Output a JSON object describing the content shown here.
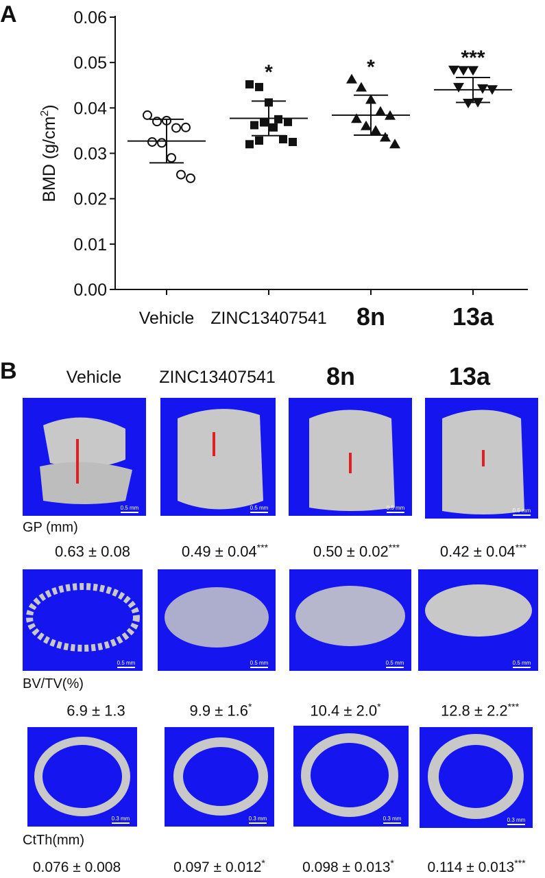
{
  "panel_a": {
    "label": "A",
    "chart_data": {
      "type": "scatter",
      "ylabel": "BMD (g/cm²)",
      "ylabel_main": "BMD (g/cm",
      "ylabel_sup": "2",
      "ylabel_end": ")",
      "ylim": [
        0.0,
        0.06
      ],
      "yticks": [
        "0.00",
        "0.01",
        "0.02",
        "0.03",
        "0.04",
        "0.05",
        "0.06"
      ],
      "categories": [
        "Vehicle",
        "ZINC13407541",
        "8n",
        "13a"
      ],
      "series": [
        {
          "category": "Vehicle",
          "marker": "open-circle",
          "values": [
            0.0384,
            0.037,
            0.0372,
            0.0356,
            0.0357,
            0.0325,
            0.0323,
            0.029,
            0.0253,
            0.0245
          ],
          "mean": 0.0327,
          "sd_low": 0.0279,
          "sd_high": 0.0375,
          "significance": ""
        },
        {
          "category": "ZINC13407541",
          "marker": "filled-square",
          "values": [
            0.0452,
            0.0446,
            0.0412,
            0.0375,
            0.0369,
            0.0362,
            0.0368,
            0.0357,
            0.0331,
            0.0325,
            0.032,
            0.0328
          ],
          "mean": 0.0377,
          "sd_low": 0.0339,
          "sd_high": 0.0415,
          "significance": "*"
        },
        {
          "category": "8n",
          "marker": "filled-triangle-up",
          "values": [
            0.0463,
            0.0445,
            0.0418,
            0.0392,
            0.0383,
            0.0376,
            0.036,
            0.035,
            0.0335,
            0.032
          ],
          "mean": 0.0384,
          "sd_low": 0.034,
          "sd_high": 0.0428,
          "significance": "*"
        },
        {
          "category": "13a",
          "marker": "filled-triangle-down",
          "values": [
            0.0484,
            0.0483,
            0.0483,
            0.0443,
            0.0441,
            0.0446,
            0.0411,
            0.0413
          ],
          "mean": 0.044,
          "sd_low": 0.0412,
          "sd_high": 0.0467,
          "significance": "***"
        }
      ]
    }
  },
  "panel_b": {
    "label": "B",
    "columns": [
      "Vehicle",
      "ZINC13407541",
      "8n",
      "13a"
    ],
    "rows": [
      {
        "label": "GP (mm)",
        "scale": "0.5 mm",
        "values": [
          {
            "value": "0.63 ± 0.08",
            "sig": ""
          },
          {
            "value": "0.49 ± 0.04",
            "sig": "***"
          },
          {
            "value": "0.50 ± 0.02",
            "sig": "***"
          },
          {
            "value": "0.42 ± 0.04",
            "sig": "***"
          }
        ]
      },
      {
        "label": "BV/TV(%)",
        "scale": "0.5 mm",
        "values": [
          {
            "value": "6.9 ± 1.3",
            "sig": ""
          },
          {
            "value": "9.9 ± 1.6",
            "sig": "*"
          },
          {
            "value": "10.4 ± 2.0",
            "sig": "*"
          },
          {
            "value": "12.8 ± 2.2",
            "sig": "***"
          }
        ]
      },
      {
        "label": "CtTh(mm)",
        "scale": "0.3 mm",
        "values": [
          {
            "value": "0.076 ± 0.008",
            "sig": ""
          },
          {
            "value": "0.097 ± 0.012",
            "sig": "*"
          },
          {
            "value": "0.098 ± 0.013",
            "sig": "*"
          },
          {
            "value": "0.114 ± 0.013",
            "sig": "***"
          }
        ]
      }
    ],
    "colors": {
      "background": "#1515f0",
      "bone": "#c8c8c8",
      "arrow": "#e02020"
    }
  }
}
